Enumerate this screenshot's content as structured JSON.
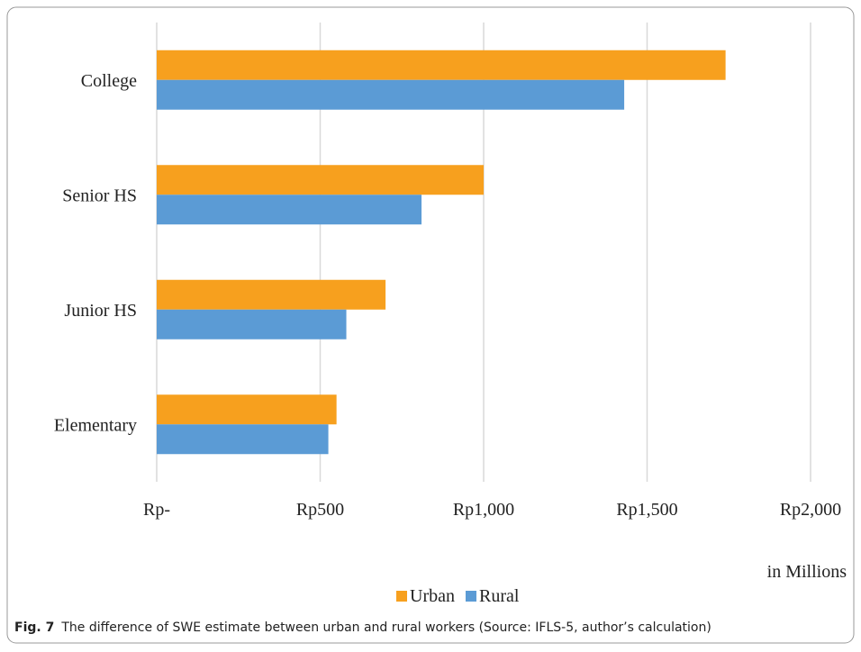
{
  "chart_data": {
    "type": "hbar",
    "categories": [
      "College",
      "Senior HS",
      "Junior HS",
      "Elementary"
    ],
    "series": [
      {
        "name": "Urban",
        "color": "#f7a01e",
        "values": [
          1740,
          1000,
          700,
          550
        ]
      },
      {
        "name": "Rural",
        "color": "#5b9bd5",
        "values": [
          1430,
          810,
          580,
          525
        ]
      }
    ],
    "xlim": [
      0,
      2000
    ],
    "xticks": [
      {
        "value": 0,
        "label": "Rp-"
      },
      {
        "value": 500,
        "label": "Rp500"
      },
      {
        "value": 1000,
        "label": "Rp1,000"
      },
      {
        "value": 1500,
        "label": "Rp1,500"
      },
      {
        "value": 2000,
        "label": "Rp2,000"
      }
    ],
    "x_label": "in Millions",
    "grid": true,
    "legend": "bottom",
    "caption": {
      "label": "Fig. 7",
      "text": "The difference of SWE estimate between urban and rural workers (Source: IFLS-5, author’s calculation)"
    }
  }
}
